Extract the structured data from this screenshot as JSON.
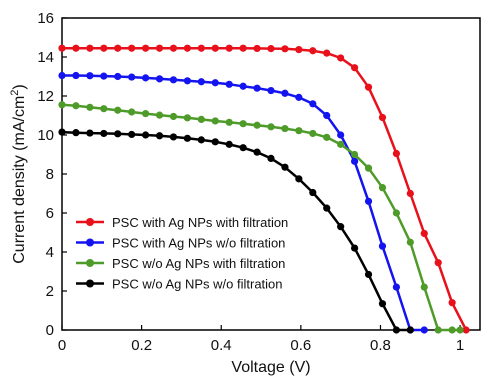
{
  "chart_data": {
    "type": "line",
    "xlabel": "Voltage (V)",
    "ylabel_main": "Current density (mA/cm",
    "ylabel_sup": "2",
    "ylabel_tail": ")",
    "xlim": [
      0,
      1.05
    ],
    "ylim": [
      0,
      16
    ],
    "x_ticks": [
      0,
      0.2,
      0.4,
      0.6,
      0.8,
      1
    ],
    "x_tick_labels": [
      "0",
      "0.2",
      "0.4",
      "0.6",
      "0.8",
      "1"
    ],
    "y_ticks": [
      0,
      2,
      4,
      6,
      8,
      10,
      12,
      14,
      16
    ],
    "y_tick_labels": [
      "0",
      "2",
      "4",
      "6",
      "8",
      "10",
      "12",
      "14",
      "16"
    ],
    "grid": false,
    "legend_position": "bottom-left",
    "series": [
      {
        "name": "PSC with Ag NPs with filtration",
        "color": "#e8101a",
        "x": [
          0,
          0.035,
          0.07,
          0.105,
          0.14,
          0.175,
          0.21,
          0.245,
          0.28,
          0.315,
          0.35,
          0.385,
          0.42,
          0.455,
          0.49,
          0.525,
          0.56,
          0.595,
          0.63,
          0.665,
          0.7,
          0.735,
          0.77,
          0.805,
          0.84,
          0.875,
          0.91,
          0.945,
          0.98,
          1.015
        ],
        "y": [
          14.45,
          14.45,
          14.45,
          14.45,
          14.45,
          14.45,
          14.45,
          14.45,
          14.45,
          14.45,
          14.45,
          14.45,
          14.45,
          14.45,
          14.44,
          14.43,
          14.42,
          14.38,
          14.32,
          14.2,
          13.95,
          13.45,
          12.45,
          10.9,
          9.05,
          7.0,
          4.95,
          3.45,
          1.4,
          0.0
        ]
      },
      {
        "name": "PSC with Ag NPs w/o filtration",
        "color": "#1414f0",
        "x": [
          0,
          0.035,
          0.07,
          0.105,
          0.14,
          0.175,
          0.21,
          0.245,
          0.28,
          0.315,
          0.35,
          0.385,
          0.42,
          0.455,
          0.49,
          0.525,
          0.56,
          0.595,
          0.63,
          0.665,
          0.7,
          0.735,
          0.77,
          0.805,
          0.84,
          0.875,
          0.91
        ],
        "y": [
          13.05,
          13.05,
          13.04,
          13.02,
          13.0,
          12.97,
          12.93,
          12.88,
          12.83,
          12.78,
          12.73,
          12.68,
          12.6,
          12.5,
          12.4,
          12.28,
          12.14,
          11.93,
          11.6,
          11.0,
          10.0,
          8.65,
          6.6,
          4.3,
          2.2,
          0.0,
          0.0
        ]
      },
      {
        "name": "PSC w/o Ag NPs with filtration",
        "color": "#4e9b2a",
        "x": [
          0,
          0.035,
          0.07,
          0.105,
          0.14,
          0.175,
          0.21,
          0.245,
          0.28,
          0.315,
          0.35,
          0.385,
          0.42,
          0.455,
          0.49,
          0.525,
          0.56,
          0.595,
          0.63,
          0.665,
          0.7,
          0.735,
          0.77,
          0.805,
          0.84,
          0.875,
          0.91,
          0.945,
          0.98,
          1.0
        ],
        "y": [
          11.55,
          11.5,
          11.42,
          11.35,
          11.27,
          11.18,
          11.1,
          11.02,
          10.95,
          10.88,
          10.8,
          10.72,
          10.65,
          10.58,
          10.5,
          10.42,
          10.33,
          10.22,
          10.08,
          9.88,
          9.52,
          9.0,
          8.3,
          7.3,
          6.0,
          4.5,
          2.2,
          0.0,
          0.0,
          0.0
        ]
      },
      {
        "name": "PSC w/o Ag NPs w/o filtration",
        "color": "#000000",
        "x": [
          0,
          0.035,
          0.07,
          0.105,
          0.14,
          0.175,
          0.21,
          0.245,
          0.28,
          0.315,
          0.35,
          0.385,
          0.42,
          0.455,
          0.49,
          0.525,
          0.56,
          0.595,
          0.63,
          0.665,
          0.7,
          0.735,
          0.77,
          0.805,
          0.84,
          0.875
        ],
        "y": [
          10.15,
          10.12,
          10.1,
          10.08,
          10.06,
          10.03,
          10.0,
          9.96,
          9.9,
          9.83,
          9.75,
          9.65,
          9.52,
          9.35,
          9.12,
          8.8,
          8.35,
          7.75,
          7.05,
          6.25,
          5.3,
          4.2,
          2.85,
          1.35,
          0.0,
          0.0
        ]
      }
    ]
  }
}
